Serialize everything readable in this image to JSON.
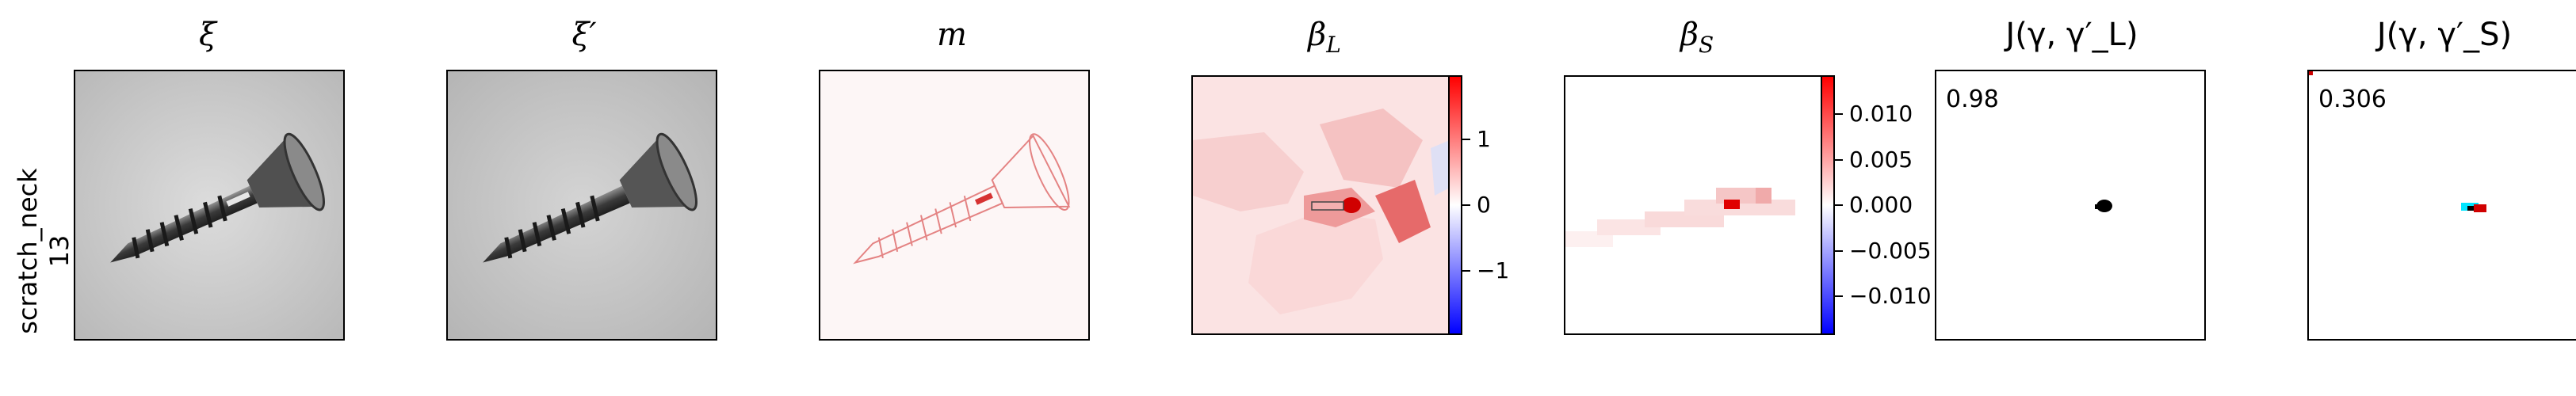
{
  "row_label": {
    "line1": "scratch_neck",
    "line2": "13"
  },
  "panels": [
    {
      "id": "xi",
      "title": "ξ"
    },
    {
      "id": "xi_prime",
      "title": "ξ′"
    },
    {
      "id": "m",
      "title": "m"
    },
    {
      "id": "beta_L",
      "title": "β_L"
    },
    {
      "id": "beta_S",
      "title": "β_S"
    },
    {
      "id": "J_L",
      "title": "J(γ, γ′_L)",
      "score": "0.98"
    },
    {
      "id": "J_S",
      "title": "J(γ, γ′_S)",
      "score": "0.306"
    }
  ],
  "colorbar_L": {
    "ticks": [
      "1",
      "0",
      "−1"
    ]
  },
  "colorbar_S": {
    "ticks": [
      "0.010",
      "0.005",
      "0.000",
      "−0.005",
      "−0.010"
    ]
  },
  "colors": {
    "positive": "#ff0000",
    "negative": "#0000ff",
    "zero": "#ffffff",
    "overlay_a": "#00e5ff"
  }
}
